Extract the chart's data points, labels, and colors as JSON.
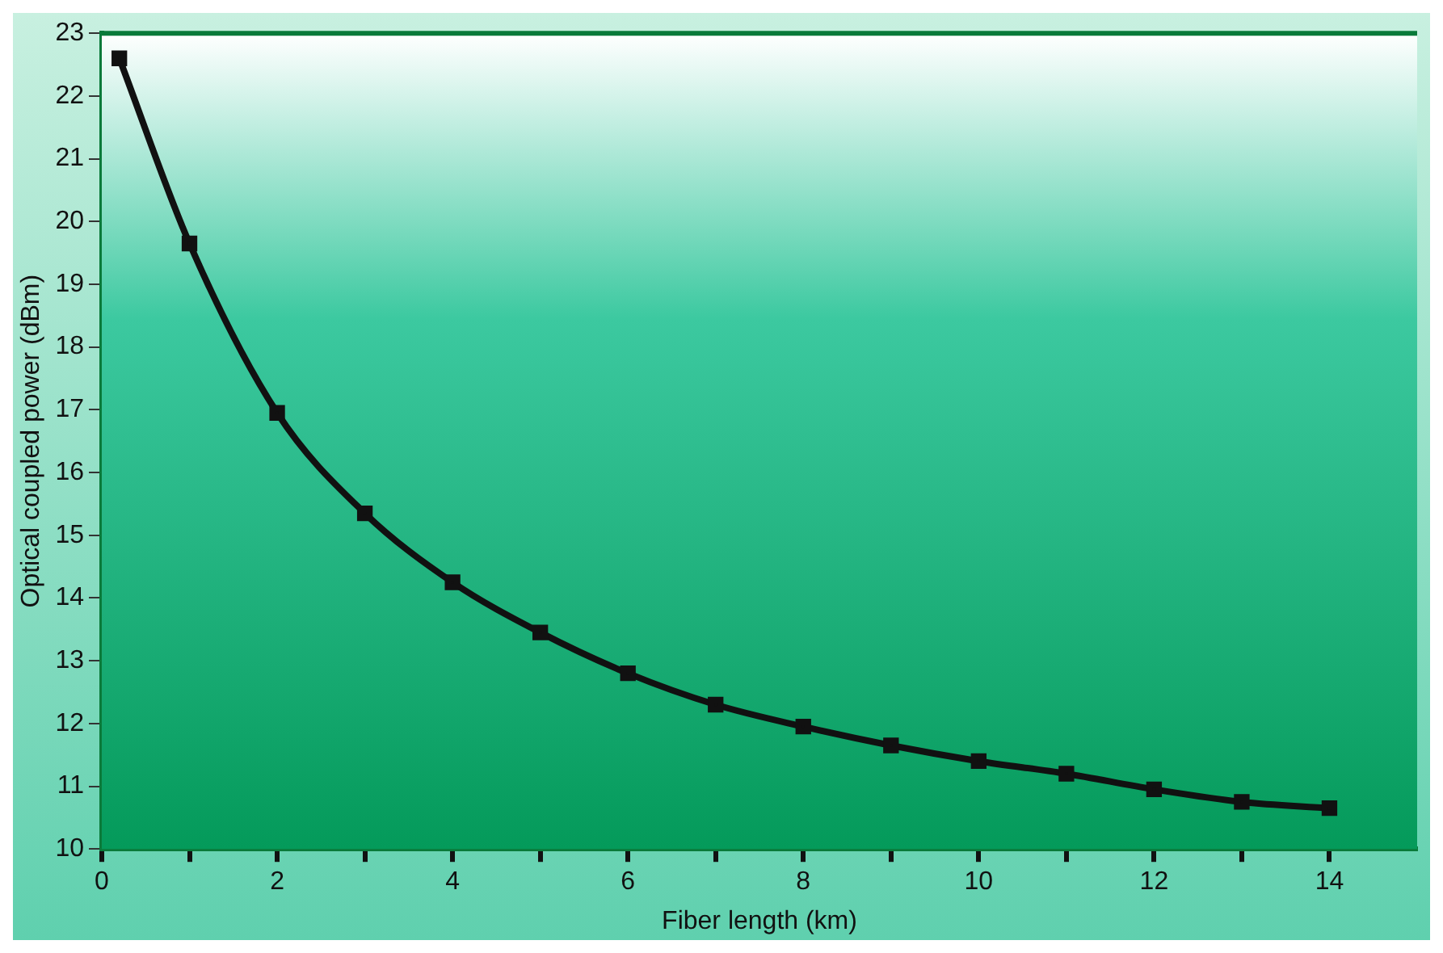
{
  "chart_data": {
    "type": "line",
    "xlabel": "Fiber length (km)",
    "ylabel": "Optical coupled power (dBm)",
    "x": [
      0.2,
      1,
      2,
      3,
      4,
      5,
      6,
      7,
      8,
      9,
      10,
      11,
      12,
      13,
      14
    ],
    "series": [
      {
        "color": "#111111",
        "values": [
          22.6,
          19.65,
          16.95,
          15.35,
          14.25,
          13.45,
          12.8,
          12.3,
          11.95,
          11.65,
          11.4,
          11.2,
          10.95,
          10.75,
          10.65
        ]
      }
    ],
    "xlim": [
      0,
      15
    ],
    "xticks": [
      0,
      {
        "value": 1,
        "label": null
      },
      2,
      {
        "value": 3,
        "label": null
      },
      4,
      {
        "value": 5,
        "label": null
      },
      6,
      {
        "value": 7,
        "label": null
      },
      8,
      {
        "value": 9,
        "label": null
      },
      10,
      {
        "value": 11,
        "label": null
      },
      12,
      {
        "value": 13,
        "label": null
      },
      14
    ],
    "ylim": [
      10,
      23
    ],
    "yticks": [
      10,
      11,
      12,
      13,
      14,
      15,
      16,
      17,
      18,
      19,
      20,
      21,
      22,
      23
    ],
    "legend": false,
    "marker": "square",
    "line_style": "solid"
  }
}
